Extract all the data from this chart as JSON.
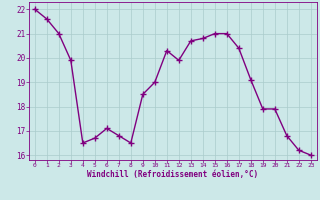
{
  "x": [
    0,
    1,
    2,
    3,
    4,
    5,
    6,
    7,
    8,
    9,
    10,
    11,
    12,
    13,
    14,
    15,
    16,
    17,
    18,
    19,
    20,
    21,
    22,
    23
  ],
  "y": [
    22.0,
    21.6,
    21.0,
    19.9,
    16.5,
    16.7,
    17.1,
    16.8,
    16.5,
    18.5,
    19.0,
    20.3,
    19.9,
    20.7,
    20.8,
    21.0,
    21.0,
    20.4,
    19.1,
    17.9,
    17.9,
    16.8,
    16.2,
    16.0
  ],
  "line_color": "#800080",
  "marker": "+",
  "marker_size": 4,
  "bg_color": "#cce8e8",
  "grid_color": "#aacccc",
  "xlabel": "Windchill (Refroidissement éolien,°C)",
  "xlabel_color": "#800080",
  "tick_color": "#800080",
  "ylim": [
    15.8,
    22.3
  ],
  "xlim": [
    -0.5,
    23.5
  ],
  "yticks": [
    16,
    17,
    18,
    19,
    20,
    21,
    22
  ],
  "xticks": [
    0,
    1,
    2,
    3,
    4,
    5,
    6,
    7,
    8,
    9,
    10,
    11,
    12,
    13,
    14,
    15,
    16,
    17,
    18,
    19,
    20,
    21,
    22,
    23
  ],
  "spine_color": "#800080",
  "fig_bg": "#cce8e8",
  "line_width": 1.0
}
